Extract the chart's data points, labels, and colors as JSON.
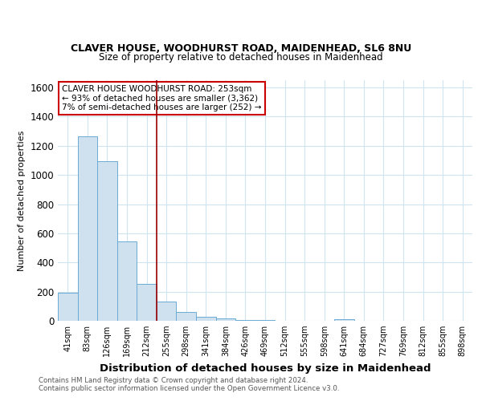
{
  "title1": "CLAVER HOUSE, WOODHURST ROAD, MAIDENHEAD, SL6 8NU",
  "title2": "Size of property relative to detached houses in Maidenhead",
  "xlabel": "Distribution of detached houses by size in Maidenhead",
  "ylabel": "Number of detached properties",
  "categories": [
    "41sqm",
    "83sqm",
    "126sqm",
    "169sqm",
    "212sqm",
    "255sqm",
    "298sqm",
    "341sqm",
    "384sqm",
    "426sqm",
    "469sqm",
    "512sqm",
    "555sqm",
    "598sqm",
    "641sqm",
    "684sqm",
    "727sqm",
    "769sqm",
    "812sqm",
    "855sqm",
    "898sqm"
  ],
  "values": [
    195,
    1265,
    1095,
    545,
    255,
    130,
    60,
    28,
    14,
    7,
    4,
    2,
    1,
    0,
    12,
    0,
    0,
    0,
    0,
    0,
    0
  ],
  "bar_color": "#cfe0ef",
  "bar_edge_color": "#6aaad4",
  "red_line_x": 4.5,
  "annotation_text": "CLAVER HOUSE WOODHURST ROAD: 253sqm\n← 93% of detached houses are smaller (3,362)\n7% of semi-detached houses are larger (252) →",
  "annotation_box_color": "#ffffff",
  "annotation_box_edge": "#cc0000",
  "footer1": "Contains HM Land Registry data © Crown copyright and database right 2024.",
  "footer2": "Contains public sector information licensed under the Open Government Licence v3.0.",
  "background_color": "#ffffff",
  "grid_color": "#d0e4f0",
  "ylim": [
    0,
    1650
  ],
  "yticks": [
    0,
    200,
    400,
    600,
    800,
    1000,
    1200,
    1400,
    1600
  ]
}
